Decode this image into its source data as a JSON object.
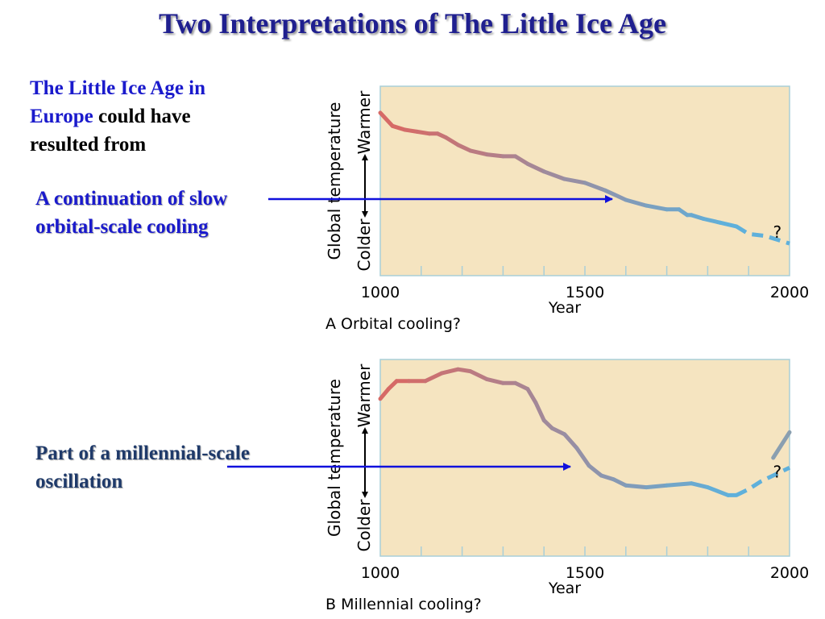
{
  "title": "Two Interpretations of The Little Ice Age",
  "intro": {
    "part1": "The Little Ice Age in Europe",
    "part2": " could have resulted from"
  },
  "labels": {
    "a": "A continuation of slow orbital-scale cooling",
    "b": "Part of a millennial-scale oscillation"
  },
  "colors": {
    "title": "#1f1f8f",
    "label_blue": "#1a1acc",
    "arrow": "#1010dd",
    "plot_bg": "#f5e4c0",
    "warm": "#d66a66",
    "cool": "#5fb0db"
  },
  "chart_data": [
    {
      "type": "line",
      "caption": "A  Orbital cooling?",
      "xlabel": "Year",
      "ylabel": "Global temperature",
      "y_top_label": "Warmer",
      "y_bottom_label": "Colder",
      "xlim": [
        1000,
        2000
      ],
      "ylim": [
        0,
        10
      ],
      "xticks": [
        "1000",
        "1500",
        "2000"
      ],
      "annotation": "?",
      "series": [
        {
          "x": [
            1000,
            1030,
            1060,
            1090,
            1120,
            1140,
            1160,
            1190,
            1220,
            1260,
            1300,
            1330,
            1360,
            1400,
            1450,
            1500,
            1550,
            1600,
            1650,
            1700,
            1730,
            1750,
            1760,
            1790,
            1830,
            1870
          ],
          "y": [
            8.6,
            7.9,
            7.7,
            7.6,
            7.5,
            7.5,
            7.3,
            6.9,
            6.6,
            6.4,
            6.3,
            6.3,
            5.9,
            5.5,
            5.1,
            4.9,
            4.5,
            4.0,
            3.7,
            3.5,
            3.5,
            3.2,
            3.2,
            3.0,
            2.8,
            2.6
          ]
        },
        {
          "dashed": true,
          "x": [
            1870,
            1900,
            1940,
            1970,
            2000
          ],
          "y": [
            2.6,
            2.2,
            2.1,
            1.9,
            1.7
          ]
        }
      ]
    },
    {
      "type": "line",
      "caption": "B  Millennial cooling?",
      "xlabel": "Year",
      "ylabel": "Global temperature",
      "y_top_label": "Warmer",
      "y_bottom_label": "Colder",
      "xlim": [
        1000,
        2000
      ],
      "ylim": [
        0,
        10
      ],
      "xticks": [
        "1000",
        "1500",
        "2000"
      ],
      "annotation": "?",
      "series": [
        {
          "x": [
            1000,
            1020,
            1040,
            1070,
            1110,
            1150,
            1190,
            1220,
            1260,
            1300,
            1330,
            1360,
            1380,
            1400,
            1420,
            1450,
            1480,
            1510,
            1540,
            1570,
            1600,
            1650,
            1700,
            1760,
            1800,
            1850,
            1870
          ],
          "y": [
            8.0,
            8.5,
            8.9,
            8.9,
            8.9,
            9.3,
            9.5,
            9.4,
            9.0,
            8.8,
            8.8,
            8.5,
            7.8,
            6.9,
            6.5,
            6.2,
            5.5,
            4.6,
            4.1,
            3.9,
            3.6,
            3.5,
            3.6,
            3.7,
            3.5,
            3.1,
            3.1
          ]
        },
        {
          "dashed": true,
          "x": [
            1870,
            1900,
            1930,
            1960,
            2000
          ],
          "y": [
            3.1,
            3.4,
            3.8,
            4.1,
            4.5
          ]
        },
        {
          "x": [
            1960,
            2000
          ],
          "y": [
            5.0,
            6.3
          ]
        }
      ]
    }
  ]
}
